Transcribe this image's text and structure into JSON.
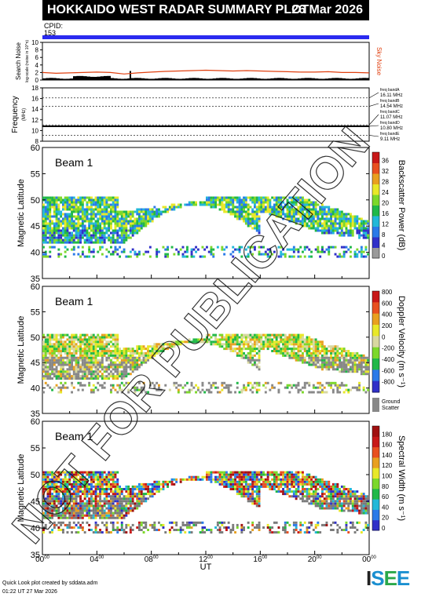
{
  "header": {
    "title": "HOKKAIDO WEST RADAR SUMMARY PLOT",
    "date": "26 Mar 2026",
    "cpid_label": "CPID:",
    "cpid_value": "153"
  },
  "watermark": "NOT FOR PUBLICATION",
  "footer": {
    "line1": "Quick Look plot created by sddata.adm",
    "line2": "01:22 UT 27 Mar 2026"
  },
  "logo": "ISEE",
  "colors": {
    "cpid_bar": "#2a2af0",
    "sky_noise": "#e04010",
    "ground_scatter": "#888888"
  },
  "chart_data": [
    {
      "type": "line",
      "panel": "noise",
      "ylabel": "Search Noise",
      "ylabel_sub": "log-scale (noise in 10^n)",
      "yticks": [
        "0",
        "2",
        "4",
        "6",
        "8",
        "10"
      ],
      "ylim": [
        0,
        10
      ],
      "series_label": "Sky Noise",
      "x": [
        0,
        1,
        2,
        3,
        4,
        5,
        6,
        7,
        8,
        9,
        10,
        11,
        12,
        13,
        14,
        15,
        16,
        17,
        18,
        19,
        20,
        21,
        22,
        23,
        24
      ],
      "values": [
        2.0,
        1.8,
        1.9,
        2.0,
        2.1,
        2.0,
        1.6,
        1.9,
        2.1,
        2.3,
        2.4,
        2.5,
        2.6,
        2.5,
        2.4,
        2.5,
        2.4,
        2.3,
        2.2,
        2.1,
        2.1,
        2.2,
        2.0,
        2.0,
        1.9
      ]
    },
    {
      "type": "line",
      "panel": "frequency",
      "ylabel": "Frequency",
      "ylabel_unit": "(MHz)",
      "yticks": [
        "8",
        "10",
        "12",
        "14",
        "16",
        "18"
      ],
      "ylim": [
        8,
        18
      ],
      "bands": [
        {
          "label": "freq bandA",
          "mhz": "16.11 MHz"
        },
        {
          "label": "freq bandB",
          "mhz": "14.54 MHz"
        },
        {
          "label": "freq bandC",
          "mhz": "11.07 MHz"
        },
        {
          "label": "freq bandD",
          "mhz": "10.80 MHz"
        },
        {
          "label": "freq bandE",
          "mhz": "9.11 MHz"
        }
      ],
      "operating_frequency": 10.8
    },
    {
      "type": "heatmap",
      "panel": "power",
      "beam_label": "Beam  1",
      "ylabel": "Magnetic Latitude",
      "yticks": [
        "35",
        "40",
        "45",
        "50",
        "55",
        "60"
      ],
      "ylim": [
        35,
        60
      ],
      "colorbar_label": "Backscatter Power (dB)",
      "colorbar_ticks": [
        "0",
        "4",
        "8",
        "12",
        "16",
        "20",
        "24",
        "28",
        "32",
        "36"
      ]
    },
    {
      "type": "heatmap",
      "panel": "velocity",
      "beam_label": "Beam  1",
      "ylabel": "Magnetic Latitude",
      "yticks": [
        "35",
        "40",
        "45",
        "50",
        "55",
        "60"
      ],
      "ylim": [
        35,
        60
      ],
      "colorbar_label": "Doppler Velocity (m s⁻¹)",
      "colorbar_ticks": [
        "800",
        "600",
        "400",
        "200",
        "0",
        "-200",
        "-400",
        "-600",
        "-800"
      ],
      "ground_label_1": "Ground",
      "ground_label_2": "Scatter"
    },
    {
      "type": "heatmap",
      "panel": "width",
      "beam_label": "Beam  1",
      "ylabel": "Magnetic Latitude",
      "yticks": [
        "35",
        "40",
        "45",
        "50",
        "55",
        "60"
      ],
      "ylim": [
        35,
        60
      ],
      "colorbar_label": "Spectral Width (m s⁻¹)",
      "colorbar_ticks": [
        "0",
        "20",
        "40",
        "60",
        "80",
        "100",
        "120",
        "140",
        "160",
        "180"
      ],
      "xlabel": "UT",
      "xticks": [
        "00",
        "04",
        "08",
        "12",
        "16",
        "20",
        "00"
      ],
      "xtick_sup": "00",
      "xlim": [
        0,
        24
      ]
    }
  ]
}
